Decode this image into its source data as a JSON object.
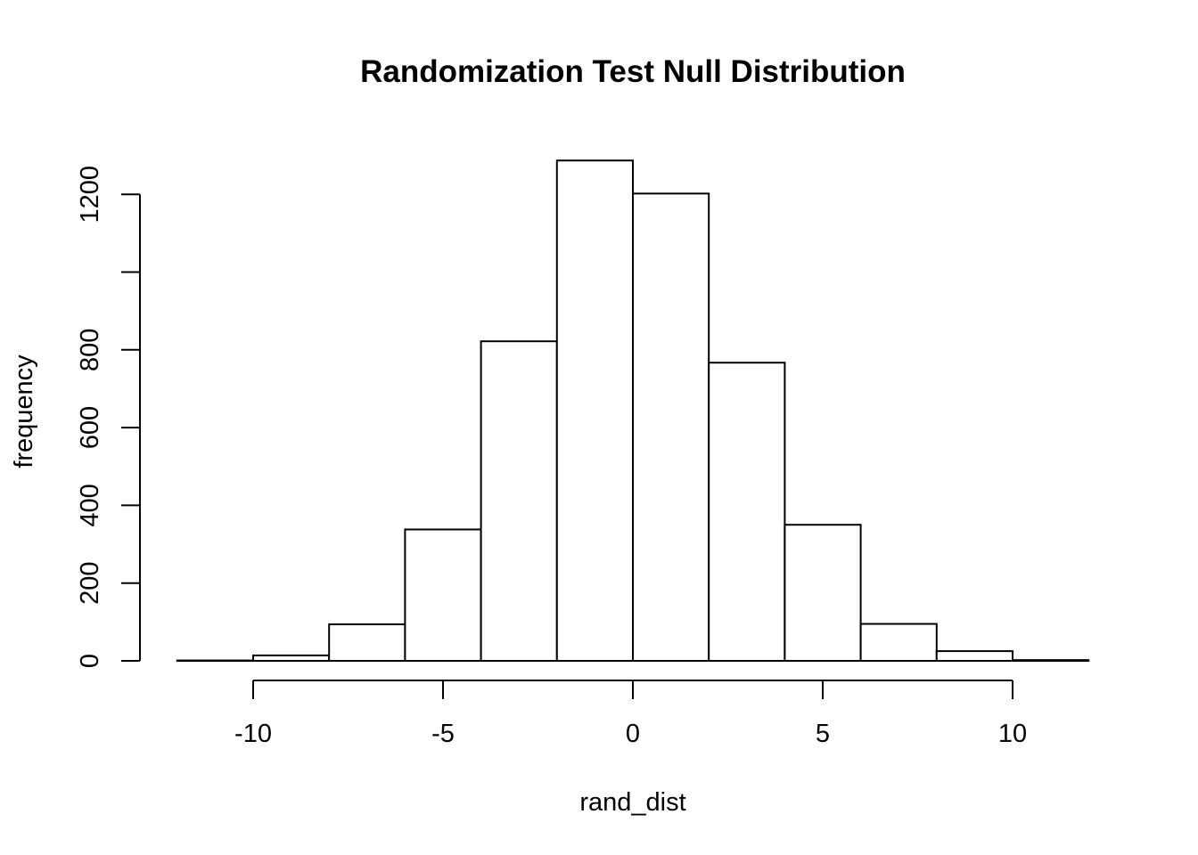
{
  "chart_data": {
    "type": "bar",
    "title": "Randomization Test Null Distribution",
    "xlabel": "rand_dist",
    "ylabel": "frequency",
    "bins": [
      {
        "from": -12,
        "to": -10,
        "count": 1
      },
      {
        "from": -10,
        "to": -8,
        "count": 14
      },
      {
        "from": -8,
        "to": -6,
        "count": 94
      },
      {
        "from": -6,
        "to": -4,
        "count": 338
      },
      {
        "from": -4,
        "to": -2,
        "count": 822
      },
      {
        "from": -2,
        "to": 0,
        "count": 1287
      },
      {
        "from": 0,
        "to": 2,
        "count": 1202
      },
      {
        "from": 2,
        "to": 4,
        "count": 767
      },
      {
        "from": 4,
        "to": 6,
        "count": 350
      },
      {
        "from": 6,
        "to": 8,
        "count": 95
      },
      {
        "from": 8,
        "to": 10,
        "count": 25
      },
      {
        "from": 10,
        "to": 12,
        "count": 2
      }
    ],
    "xlim": [
      -12,
      12
    ],
    "ylim": [
      0,
      1287
    ],
    "x_ticks": [
      -10,
      -5,
      0,
      5,
      10
    ],
    "x_tick_labels": [
      "-10",
      "-5",
      "0",
      "5",
      "10"
    ],
    "y_ticks": [
      0,
      200,
      400,
      600,
      800,
      1000,
      1200
    ],
    "y_tick_labels": [
      "0",
      "200",
      "400",
      "600",
      "800",
      "",
      "1200"
    ],
    "grid": false,
    "legend": "none",
    "bar_fill": "#ffffff",
    "bar_stroke": "#000000"
  }
}
